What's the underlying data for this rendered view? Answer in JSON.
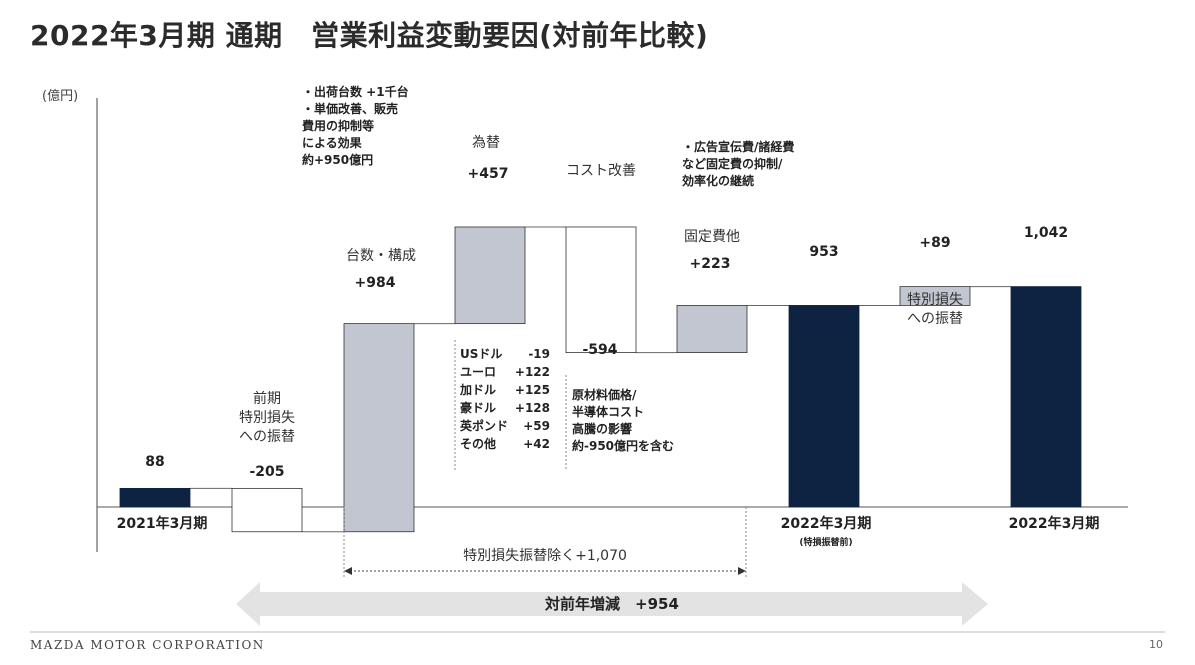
{
  "title": "2022年3月期 通期　営業利益変動要因(対前年比較)",
  "colors": {
    "navy": "#0d2341",
    "gray": "#c2c6d0",
    "white": "#ffffff",
    "arrow": "#e3e3e3"
  },
  "chart_data": {
    "type": "waterfall",
    "unit_label": "(億円)",
    "ylim": [
      -50,
      1100
    ],
    "steps": [
      {
        "value": 88,
        "value_label": "88",
        "kind": "total",
        "color": "navy"
      },
      {
        "value": -205,
        "value_label": "-205",
        "kind": "delta",
        "color": "white"
      },
      {
        "value": 984,
        "value_label": "+984",
        "kind": "delta",
        "color": "gray"
      },
      {
        "value": 457,
        "value_label": "+457",
        "kind": "delta",
        "color": "gray"
      },
      {
        "value": -594,
        "value_label": "-594",
        "kind": "delta",
        "color": "white"
      },
      {
        "value": 223,
        "value_label": "+223",
        "kind": "delta",
        "color": "gray"
      },
      {
        "value": 953,
        "value_label": "953",
        "kind": "total",
        "color": "navy"
      },
      {
        "value": 89,
        "value_label": "+89",
        "kind": "delta",
        "color": "gray"
      },
      {
        "value": 1042,
        "value_label": "1,042",
        "kind": "total",
        "color": "navy"
      }
    ],
    "category_labels": [
      "2021年3月期",
      "2022年3月期",
      "(特損振替前)",
      "2022年3月期"
    ],
    "step_names": {
      "prior_special": [
        "前期",
        "特別損失",
        "への振替"
      ],
      "volume_mix": "台数・構成",
      "fx": "為替",
      "cost": "コスト改善",
      "fixed": "固定費他",
      "special": [
        "特別損失",
        "への振替"
      ]
    },
    "annotations": {
      "volume_notes": [
        "・出荷台数 +1千台",
        "・単価改善、販売",
        "費用の抑制等",
        "による効果",
        "約+950億円"
      ],
      "fx_breakdown": [
        {
          "name": "USドル",
          "value": "-19"
        },
        {
          "name": "ユーロ",
          "value": "+122"
        },
        {
          "name": "加ドル",
          "value": "+125"
        },
        {
          "name": "豪ドル",
          "value": "+128"
        },
        {
          "name": "英ポンド",
          "value": "+59"
        },
        {
          "name": "その他",
          "value": "+42"
        }
      ],
      "cost_notes": [
        "原材料価格/",
        "半導体コスト",
        "高騰の影響",
        "約-950億円を含む"
      ],
      "fixed_notes": [
        "・広告宣伝費/諸経費",
        "など固定費の抑制/",
        "効率化の継続"
      ],
      "bracket_label": "特別損失振替除く+1,070",
      "yoy_label": "対前年増減　+954"
    }
  },
  "footer": {
    "company": "MAZDA MOTOR CORPORATION",
    "page": "10"
  }
}
